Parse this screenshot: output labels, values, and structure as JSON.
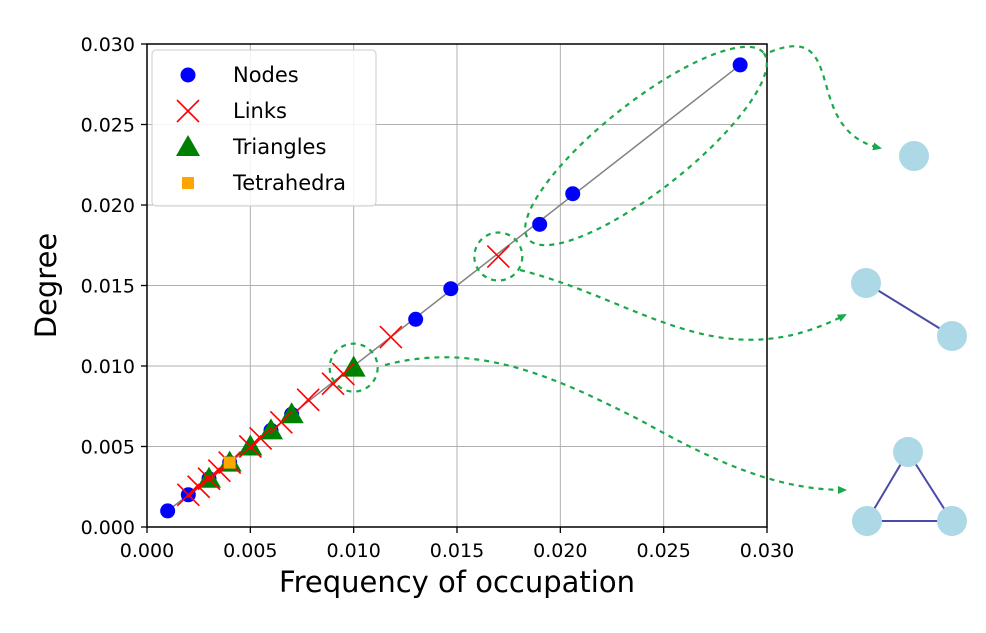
{
  "chart_data": {
    "type": "scatter",
    "xlabel": "Frequency of occupation",
    "ylabel": "Degree",
    "xlim": [
      0.0,
      0.03
    ],
    "ylim": [
      0.0,
      0.03
    ],
    "xticks": [
      "0.000",
      "0.005",
      "0.010",
      "0.015",
      "0.020",
      "0.025",
      "0.030"
    ],
    "yticks": [
      "0.000",
      "0.005",
      "0.010",
      "0.015",
      "0.020",
      "0.025",
      "0.030"
    ],
    "grid": true,
    "legend_position": "top-left",
    "diagonal_line": {
      "from": [
        0.001,
        0.001
      ],
      "to": [
        0.0287,
        0.0287
      ],
      "color": "#808080"
    },
    "series": [
      {
        "name": "Nodes",
        "marker": "circle",
        "color": "#0000ff",
        "points": [
          [
            0.001,
            0.001
          ],
          [
            0.002,
            0.002
          ],
          [
            0.003,
            0.003
          ],
          [
            0.004,
            0.004
          ],
          [
            0.006,
            0.006
          ],
          [
            0.007,
            0.007
          ],
          [
            0.013,
            0.0129
          ],
          [
            0.0147,
            0.0148
          ],
          [
            0.019,
            0.0188
          ],
          [
            0.0206,
            0.0207
          ],
          [
            0.0287,
            0.0287
          ]
        ]
      },
      {
        "name": "Links",
        "marker": "x",
        "color": "#ff0000",
        "points": [
          [
            0.002,
            0.002
          ],
          [
            0.0025,
            0.0025
          ],
          [
            0.003,
            0.003
          ],
          [
            0.0035,
            0.0035
          ],
          [
            0.004,
            0.004
          ],
          [
            0.005,
            0.005
          ],
          [
            0.0055,
            0.0055
          ],
          [
            0.0065,
            0.0065
          ],
          [
            0.0078,
            0.0079
          ],
          [
            0.009,
            0.0089
          ],
          [
            0.0095,
            0.0095
          ],
          [
            0.0118,
            0.0118
          ],
          [
            0.017,
            0.0168
          ]
        ]
      },
      {
        "name": "Triangles",
        "marker": "triangle",
        "color": "#008000",
        "points": [
          [
            0.003,
            0.003
          ],
          [
            0.004,
            0.004
          ],
          [
            0.005,
            0.005
          ],
          [
            0.006,
            0.006
          ],
          [
            0.007,
            0.007
          ],
          [
            0.01,
            0.0099
          ]
        ]
      },
      {
        "name": "Tetrahedra",
        "marker": "square",
        "color": "#ffa500",
        "points": [
          [
            0.004,
            0.004
          ]
        ]
      }
    ],
    "highlights": [
      {
        "label_series": "Nodes",
        "shape": "single-node"
      },
      {
        "label_series": "Links",
        "shape": "link"
      },
      {
        "label_series": "Triangles",
        "shape": "triangle"
      }
    ]
  },
  "colors": {
    "highlight": "#1aa84a",
    "node_fill": "#add8e6",
    "graph_edge": "#4a4aa8"
  }
}
